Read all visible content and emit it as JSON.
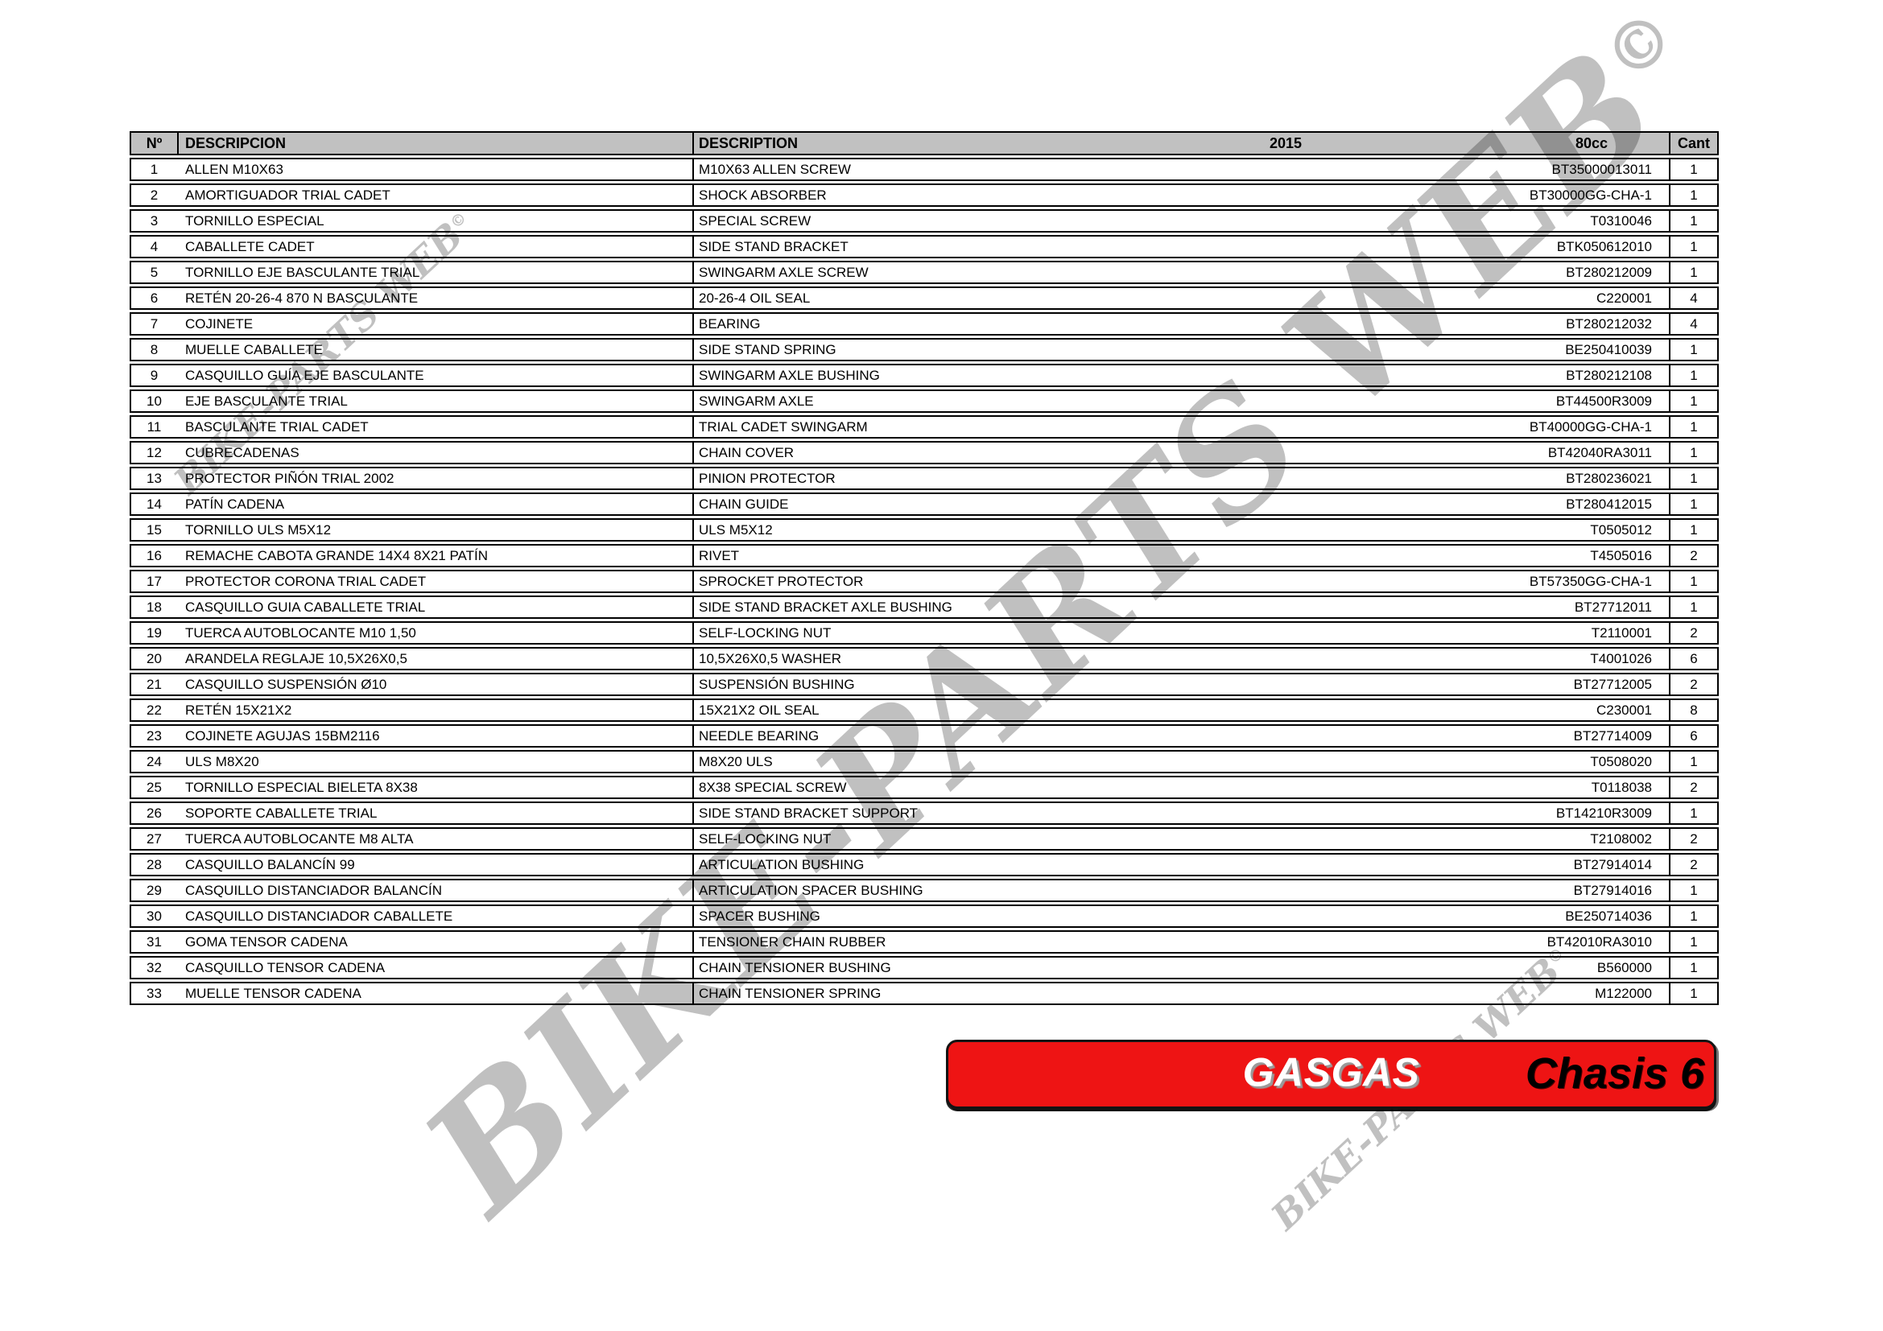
{
  "table": {
    "header": {
      "num": "Nº",
      "descripcion": "DESCRIPCION",
      "description": "DESCRIPTION",
      "year": "2015",
      "model": "80cc",
      "qty": "Cant"
    },
    "rows": [
      {
        "n": "1",
        "es": "ALLEN M10X63",
        "en": "M10X63 ALLEN SCREW",
        "part": "BT35000013011",
        "qty": "1"
      },
      {
        "n": "2",
        "es": "AMORTIGUADOR TRIAL CADET",
        "en": "SHOCK ABSORBER",
        "part": "BT30000GG-CHA-1",
        "qty": "1"
      },
      {
        "n": "3",
        "es": "TORNILLO ESPECIAL",
        "en": "SPECIAL SCREW",
        "part": "T0310046",
        "qty": "1"
      },
      {
        "n": "4",
        "es": "CABALLETE CADET",
        "en": "SIDE STAND BRACKET",
        "part": "BTK050612010",
        "qty": "1"
      },
      {
        "n": "5",
        "es": "TORNILLO EJE BASCULANTE TRIAL",
        "en": "SWINGARM AXLE SCREW",
        "part": "BT280212009",
        "qty": "1"
      },
      {
        "n": "6",
        "es": "RETÉN 20-26-4 870 N BASCULANTE",
        "en": "20-26-4 OIL SEAL",
        "part": "C220001",
        "qty": "4"
      },
      {
        "n": "7",
        "es": "COJINETE",
        "en": "BEARING",
        "part": "BT280212032",
        "qty": "4"
      },
      {
        "n": "8",
        "es": "MUELLE CABALLETE",
        "en": "SIDE STAND SPRING",
        "part": "BE250410039",
        "qty": "1"
      },
      {
        "n": "9",
        "es": "CASQUILLO GUÍA EJE BASCULANTE",
        "en": "SWINGARM AXLE BUSHING",
        "part": "BT280212108",
        "qty": "1"
      },
      {
        "n": "10",
        "es": "EJE BASCULANTE TRIAL",
        "en": "SWINGARM AXLE",
        "part": "BT44500R3009",
        "qty": "1"
      },
      {
        "n": "11",
        "es": "BASCULANTE TRIAL CADET",
        "en": "TRIAL CADET SWINGARM",
        "part": "BT40000GG-CHA-1",
        "qty": "1"
      },
      {
        "n": "12",
        "es": "CUBRECADENAS",
        "en": "CHAIN COVER",
        "part": "BT42040RA3011",
        "qty": "1"
      },
      {
        "n": "13",
        "es": "PROTECTOR PIÑÓN TRIAL 2002",
        "en": "PINION PROTECTOR",
        "part": "BT280236021",
        "qty": "1"
      },
      {
        "n": "14",
        "es": "PATÍN CADENA",
        "en": "CHAIN GUIDE",
        "part": "BT280412015",
        "qty": "1"
      },
      {
        "n": "15",
        "es": "TORNILLO ULS M5X12",
        "en": "ULS M5X12",
        "part": "T0505012",
        "qty": "1"
      },
      {
        "n": "16",
        "es": "REMACHE CABOTA GRANDE 14X4 8X21 PATÍN",
        "en": "RIVET",
        "part": "T4505016",
        "qty": "2"
      },
      {
        "n": "17",
        "es": "PROTECTOR CORONA TRIAL CADET",
        "en": "SPROCKET PROTECTOR",
        "part": "BT57350GG-CHA-1",
        "qty": "1"
      },
      {
        "n": "18",
        "es": "CASQUILLO GUIA CABALLETE TRIAL",
        "en": "SIDE STAND BRACKET AXLE BUSHING",
        "part": "BT27712011",
        "qty": "1"
      },
      {
        "n": "19",
        "es": "TUERCA AUTOBLOCANTE M10 1,50",
        "en": "SELF-LOCKING NUT",
        "part": "T2110001",
        "qty": "2"
      },
      {
        "n": "20",
        "es": "ARANDELA REGLAJE 10,5X26X0,5",
        "en": "10,5X26X0,5 WASHER",
        "part": "T4001026",
        "qty": "6"
      },
      {
        "n": "21",
        "es": "CASQUILLO SUSPENSIÓN Ø10",
        "en": "SUSPENSIÓN BUSHING",
        "part": "BT27712005",
        "qty": "2"
      },
      {
        "n": "22",
        "es": "RETÉN 15X21X2",
        "en": "15X21X2 OIL SEAL",
        "part": "C230001",
        "qty": "8"
      },
      {
        "n": "23",
        "es": "COJINETE AGUJAS 15BM2116",
        "en": "NEEDLE BEARING",
        "part": "BT27714009",
        "qty": "6"
      },
      {
        "n": "24",
        "es": "ULS M8X20",
        "en": "M8X20 ULS",
        "part": "T0508020",
        "qty": "1"
      },
      {
        "n": "25",
        "es": "TORNILLO ESPECIAL BIELETA 8X38",
        "en": "8X38 SPECIAL SCREW",
        "part": "T0118038",
        "qty": "2"
      },
      {
        "n": "26",
        "es": "SOPORTE CABALLETE TRIAL",
        "en": "SIDE STAND BRACKET SUPPORT",
        "part": "BT14210R3009",
        "qty": "1"
      },
      {
        "n": "27",
        "es": "TUERCA AUTOBLOCANTE M8 ALTA",
        "en": "SELF-LOCKING NUT",
        "part": "T2108002",
        "qty": "2"
      },
      {
        "n": "28",
        "es": "CASQUILLO BALANCÍN 99",
        "en": "ARTICULATION BUSHING",
        "part": "BT27914014",
        "qty": "2"
      },
      {
        "n": "29",
        "es": "CASQUILLO DISTANCIADOR BALANCÍN",
        "en": "ARTICULATION SPACER BUSHING",
        "part": "BT27914016",
        "qty": "1"
      },
      {
        "n": "30",
        "es": "CASQUILLO DISTANCIADOR CABALLETE",
        "en": "SPACER BUSHING",
        "part": "BE250714036",
        "qty": "1"
      },
      {
        "n": "31",
        "es": "GOMA TENSOR CADENA",
        "en": "TENSIONER CHAIN RUBBER",
        "part": "BT42010RA3010",
        "qty": "1"
      },
      {
        "n": "32",
        "es": "CASQUILLO TENSOR CADENA",
        "en": "CHAIN TENSIONER BUSHING",
        "part": "B560000",
        "qty": "1"
      },
      {
        "n": "33",
        "es": "MUELLE TENSOR CADENA",
        "en": "CHAIN TENSIONER SPRING",
        "part": "M122000",
        "qty": "1"
      }
    ]
  },
  "banner": {
    "brand": "GASGAS",
    "label": "Chasis 6",
    "color": "#ee1414"
  },
  "watermark": {
    "text": "BIKE-PARTS WEB",
    "copyright": "©"
  }
}
